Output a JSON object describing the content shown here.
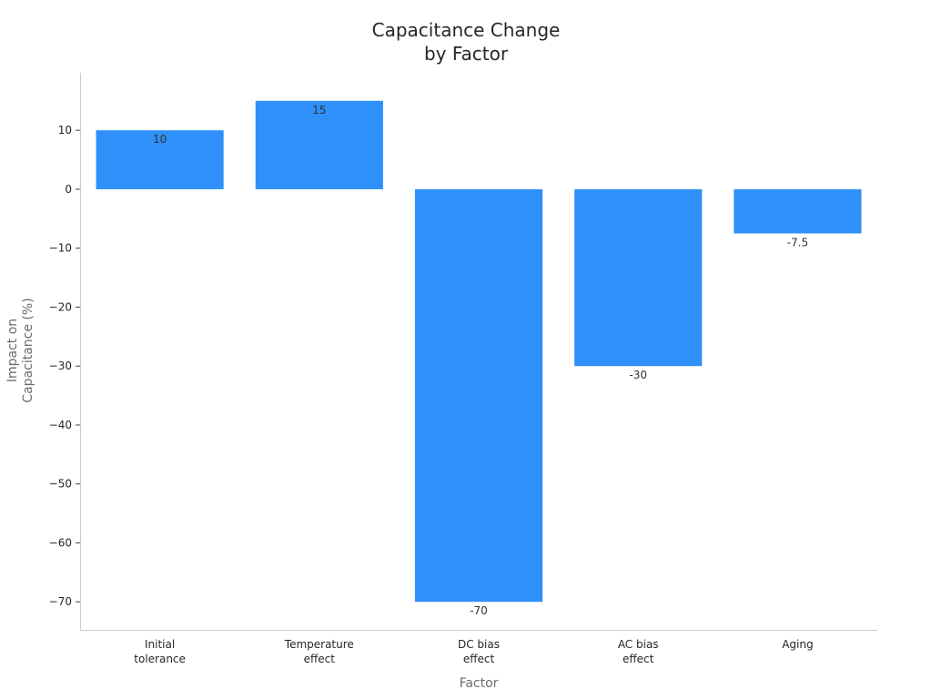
{
  "chart_data": {
    "type": "bar",
    "title_lines": [
      "Capacitance Change",
      "by Factor"
    ],
    "xlabel": "Factor",
    "ylabel_lines": [
      "Impact on",
      "Capacitance (%)"
    ],
    "categories": [
      [
        "Initial",
        "tolerance"
      ],
      [
        "Temperature",
        "effect"
      ],
      [
        "DC bias",
        "effect"
      ],
      [
        "AC bias",
        "effect"
      ],
      [
        "Aging"
      ]
    ],
    "values": [
      10,
      15,
      -70,
      -30,
      -7.5
    ],
    "data_labels": [
      "10",
      "15",
      "-70",
      "-30",
      "-7.5"
    ],
    "ylim": [
      -74.75,
      19.75
    ],
    "yticks": [
      10,
      0,
      -10,
      -20,
      -30,
      -40,
      -50,
      -60,
      -70
    ],
    "ytick_labels": [
      "10",
      "0",
      "−10",
      "−20",
      "−30",
      "−40",
      "−50",
      "−60",
      "−70"
    ],
    "bar_color": "#2e90f8",
    "grid": false
  }
}
